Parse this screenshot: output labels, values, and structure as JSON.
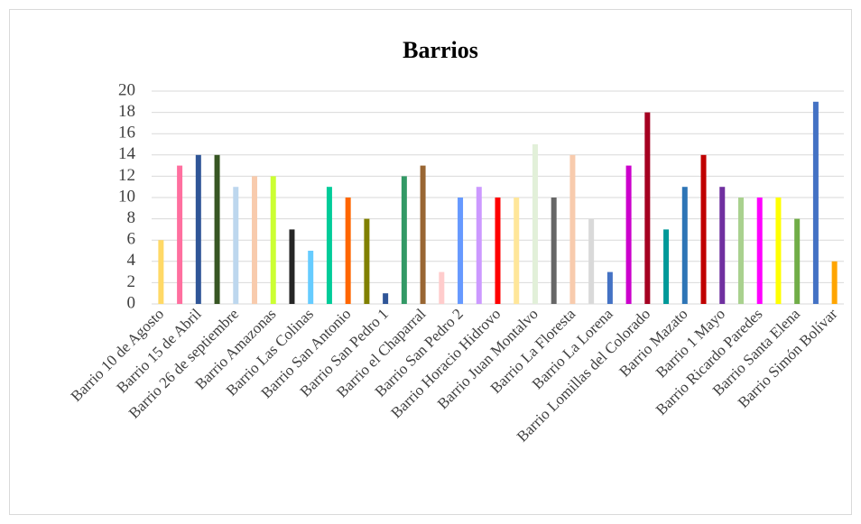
{
  "chart_data": {
    "type": "bar",
    "title": "Barrios",
    "categories": [
      "Barrio 10 de Agosto",
      null,
      "Barrio 15 de Abril",
      null,
      "Barrio 26 de septiembre",
      null,
      "Barrio Amazonas",
      null,
      "Barrio Las Colinas",
      null,
      "Barrio San Antonio",
      null,
      "Barrio San Pedro 1",
      null,
      "Barrio el Chaparral",
      null,
      "Barrio San Pedro 2",
      null,
      "Barrio Horacio Hidrovo",
      null,
      "Barrio Juan Montalvo",
      null,
      "Barrio La Floresta",
      null,
      "Barrio La Lorena",
      null,
      "Barrio Lomillas del Colorado",
      null,
      "Barrio Mazato",
      null,
      "Barrio 1 Mayo",
      null,
      "Barrio Ricardo Paredes",
      null,
      "Barrio Santa Elena",
      null,
      "Barrio Simón Bolívar"
    ],
    "values": [
      6,
      13,
      14,
      14,
      11,
      12,
      12,
      7,
      5,
      11,
      10,
      8,
      1,
      12,
      13,
      3,
      10,
      11,
      10,
      10,
      15,
      10,
      14,
      8,
      3,
      13,
      18,
      7,
      11,
      14,
      11,
      10,
      10,
      10,
      8,
      19,
      4
    ],
    "colors": [
      "#ffd966",
      "#ff6f9f",
      "#2f5597",
      "#375623",
      "#bdd7ee",
      "#f8cbad",
      "#ccff33",
      "#262626",
      "#66ccff",
      "#00cc99",
      "#ff6600",
      "#808000",
      "#2f5597",
      "#339966",
      "#996633",
      "#ffcccc",
      "#6699ff",
      "#cc99ff",
      "#ff0000",
      "#ffe699",
      "#e2f0d9",
      "#666666",
      "#f8cbad",
      "#d9d9d9",
      "#4472c4",
      "#cc00cc",
      "#a50021",
      "#009999",
      "#2e75b6",
      "#c00000",
      "#7030a0",
      "#a9d18e",
      "#ff00ff",
      "#ffff00",
      "#70ad47",
      "#4472c4",
      "#ffa500"
    ],
    "ylim": [
      0,
      20
    ],
    "yticks": [
      0,
      2,
      4,
      6,
      8,
      10,
      12,
      14,
      16,
      18,
      20
    ],
    "grid": true
  }
}
